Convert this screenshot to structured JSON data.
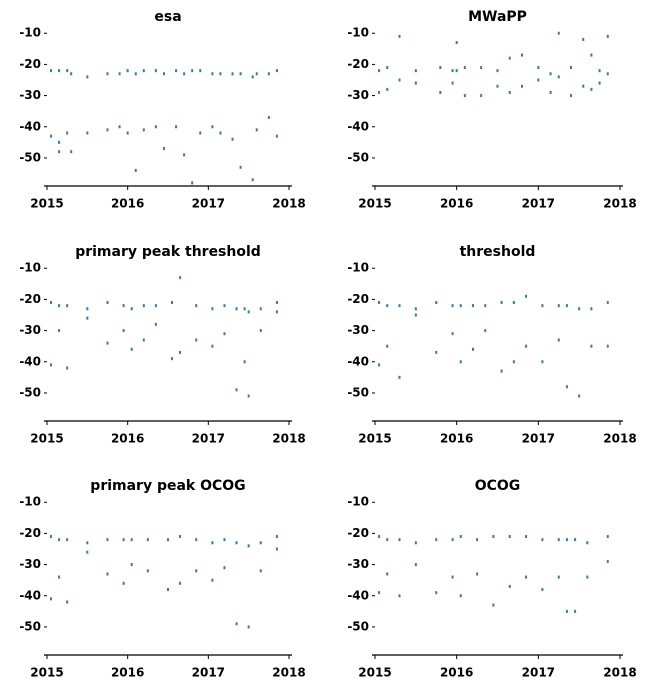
{
  "chart_data": [
    {
      "type": "scatter",
      "title": "esa",
      "color": "#2b7bba",
      "xlim": [
        2015,
        2018
      ],
      "ylim": [
        -59,
        -8
      ],
      "xticks": [
        2015,
        2016,
        2017,
        2018
      ],
      "yticks": [
        -10,
        -20,
        -30,
        -40,
        -50
      ],
      "x": [
        2015.05,
        2015.05,
        2015.15,
        2015.15,
        2015.15,
        2015.25,
        2015.25,
        2015.3,
        2015.3,
        2015.5,
        2015.5,
        2015.75,
        2015.75,
        2015.9,
        2015.9,
        2016.0,
        2016.0,
        2016.1,
        2016.1,
        2016.2,
        2016.2,
        2016.35,
        2016.35,
        2016.45,
        2016.45,
        2016.6,
        2016.6,
        2016.7,
        2016.7,
        2016.8,
        2016.8,
        2016.9,
        2016.9,
        2017.05,
        2017.05,
        2017.15,
        2017.15,
        2017.3,
        2017.3,
        2017.4,
        2017.4,
        2017.55,
        2017.55,
        2017.6,
        2017.6,
        2017.75,
        2017.75,
        2017.85,
        2017.85
      ],
      "values": [
        -22,
        -43,
        -22,
        -45,
        -48,
        -22,
        -42,
        -23,
        -48,
        -24,
        -42,
        -23,
        -41,
        -23,
        -40,
        -22,
        -42,
        -23,
        -54,
        -22,
        -41,
        -22,
        -40,
        -23,
        -47,
        -22,
        -40,
        -23,
        -49,
        -22,
        -58,
        -22,
        -42,
        -23,
        -40,
        -23,
        -42,
        -23,
        -44,
        -23,
        -53,
        -24,
        -57,
        -23,
        -41,
        -23,
        -37,
        -22,
        -43
      ]
    },
    {
      "type": "scatter",
      "title": "MWaPP",
      "color": "#2b7bba",
      "xlim": [
        2015,
        2018
      ],
      "ylim": [
        -59,
        -8
      ],
      "xticks": [
        2015,
        2016,
        2017,
        2018
      ],
      "yticks": [
        -10,
        -20,
        -30,
        -40,
        -50
      ],
      "x": [
        2015.05,
        2015.05,
        2015.15,
        2015.15,
        2015.3,
        2015.3,
        2015.5,
        2015.5,
        2015.8,
        2015.8,
        2015.95,
        2015.95,
        2016.0,
        2016.0,
        2016.1,
        2016.1,
        2016.3,
        2016.3,
        2016.5,
        2016.5,
        2016.65,
        2016.65,
        2016.8,
        2016.8,
        2017.0,
        2017.0,
        2017.15,
        2017.15,
        2017.25,
        2017.25,
        2017.4,
        2017.4,
        2017.55,
        2017.55,
        2017.65,
        2017.65,
        2017.75,
        2017.75,
        2017.85,
        2017.85
      ],
      "values": [
        -22,
        -29,
        -21,
        -28,
        -11,
        -25,
        -22,
        -26,
        -21,
        -29,
        -22,
        -26,
        -13,
        -22,
        -21,
        -30,
        -21,
        -30,
        -22,
        -27,
        -18,
        -29,
        -17,
        -27,
        -21,
        -25,
        -23,
        -29,
        -10,
        -24,
        -21,
        -30,
        -12,
        -27,
        -17,
        -28,
        -22,
        -26,
        -11,
        -23
      ]
    },
    {
      "type": "scatter",
      "title": "primary peak threshold",
      "color": "#2b7bba",
      "xlim": [
        2015,
        2018
      ],
      "ylim": [
        -59,
        -8
      ],
      "xticks": [
        2015,
        2016,
        2017,
        2018
      ],
      "yticks": [
        -10,
        -20,
        -30,
        -40,
        -50
      ],
      "x": [
        2015.05,
        2015.05,
        2015.15,
        2015.15,
        2015.25,
        2015.25,
        2015.5,
        2015.5,
        2015.75,
        2015.75,
        2015.95,
        2015.95,
        2016.05,
        2016.05,
        2016.2,
        2016.2,
        2016.35,
        2016.35,
        2016.55,
        2016.55,
        2016.65,
        2016.65,
        2016.85,
        2016.85,
        2017.05,
        2017.05,
        2017.2,
        2017.2,
        2017.35,
        2017.35,
        2017.45,
        2017.45,
        2017.5,
        2017.5,
        2017.65,
        2017.65,
        2017.85,
        2017.85
      ],
      "values": [
        -21,
        -41,
        -22,
        -30,
        -22,
        -42,
        -23,
        -26,
        -21,
        -34,
        -22,
        -30,
        -23,
        -36,
        -22,
        -33,
        -22,
        -28,
        -21,
        -39,
        -13,
        -37,
        -22,
        -33,
        -23,
        -35,
        -22,
        -31,
        -23,
        -49,
        -23,
        -40,
        -24,
        -51,
        -23,
        -30,
        -21,
        -24
      ]
    },
    {
      "type": "scatter",
      "title": "threshold",
      "color": "#2b7bba",
      "xlim": [
        2015,
        2018
      ],
      "ylim": [
        -59,
        -8
      ],
      "xticks": [
        2015,
        2016,
        2017,
        2018
      ],
      "yticks": [
        -10,
        -20,
        -30,
        -40,
        -50
      ],
      "x": [
        2015.05,
        2015.05,
        2015.15,
        2015.15,
        2015.3,
        2015.3,
        2015.5,
        2015.5,
        2015.75,
        2015.75,
        2015.95,
        2015.95,
        2016.05,
        2016.05,
        2016.2,
        2016.2,
        2016.35,
        2016.35,
        2016.55,
        2016.55,
        2016.7,
        2016.7,
        2016.85,
        2016.85,
        2017.05,
        2017.05,
        2017.25,
        2017.25,
        2017.35,
        2017.35,
        2017.5,
        2017.5,
        2017.65,
        2017.65,
        2017.85,
        2017.85
      ],
      "values": [
        -21,
        -41,
        -22,
        -35,
        -22,
        -45,
        -23,
        -25,
        -21,
        -37,
        -22,
        -31,
        -22,
        -40,
        -22,
        -36,
        -22,
        -30,
        -21,
        -43,
        -21,
        -40,
        -19,
        -35,
        -22,
        -40,
        -22,
        -33,
        -22,
        -48,
        -23,
        -51,
        -23,
        -35,
        -21,
        -35
      ]
    },
    {
      "type": "scatter",
      "title": "primary peak OCOG",
      "color": "#2b7bba",
      "xlim": [
        2015,
        2018
      ],
      "ylim": [
        -59,
        -8
      ],
      "xticks": [
        2015,
        2016,
        2017,
        2018
      ],
      "yticks": [
        -10,
        -20,
        -30,
        -40,
        -50
      ],
      "x": [
        2015.05,
        2015.05,
        2015.15,
        2015.15,
        2015.25,
        2015.25,
        2015.5,
        2015.5,
        2015.75,
        2015.75,
        2015.95,
        2015.95,
        2016.05,
        2016.05,
        2016.25,
        2016.25,
        2016.5,
        2016.5,
        2016.65,
        2016.65,
        2016.85,
        2016.85,
        2017.05,
        2017.05,
        2017.2,
        2017.2,
        2017.35,
        2017.35,
        2017.5,
        2017.5,
        2017.65,
        2017.65,
        2017.85,
        2017.85
      ],
      "values": [
        -21,
        -41,
        -22,
        -34,
        -22,
        -42,
        -23,
        -26,
        -22,
        -33,
        -22,
        -36,
        -22,
        -30,
        -22,
        -32,
        -22,
        -38,
        -21,
        -36,
        -22,
        -32,
        -23,
        -35,
        -22,
        -31,
        -23,
        -49,
        -24,
        -50,
        -23,
        -32,
        -21,
        -25
      ]
    },
    {
      "type": "scatter",
      "title": "OCOG",
      "color": "#2b7bba",
      "xlim": [
        2015,
        2018
      ],
      "ylim": [
        -59,
        -8
      ],
      "xticks": [
        2015,
        2016,
        2017,
        2018
      ],
      "yticks": [
        -10,
        -20,
        -30,
        -40,
        -50
      ],
      "x": [
        2015.05,
        2015.05,
        2015.15,
        2015.15,
        2015.3,
        2015.3,
        2015.5,
        2015.5,
        2015.75,
        2015.75,
        2015.95,
        2015.95,
        2016.05,
        2016.05,
        2016.25,
        2016.25,
        2016.45,
        2016.45,
        2016.65,
        2016.65,
        2016.85,
        2016.85,
        2017.05,
        2017.05,
        2017.25,
        2017.25,
        2017.35,
        2017.35,
        2017.45,
        2017.45,
        2017.6,
        2017.6,
        2017.85,
        2017.85
      ],
      "values": [
        -21,
        -39,
        -22,
        -33,
        -22,
        -40,
        -23,
        -30,
        -22,
        -39,
        -22,
        -34,
        -21,
        -40,
        -22,
        -33,
        -21,
        -43,
        -21,
        -37,
        -21,
        -34,
        -22,
        -38,
        -22,
        -34,
        -22,
        -45,
        -22,
        -45,
        -23,
        -34,
        -21,
        -29
      ]
    }
  ]
}
